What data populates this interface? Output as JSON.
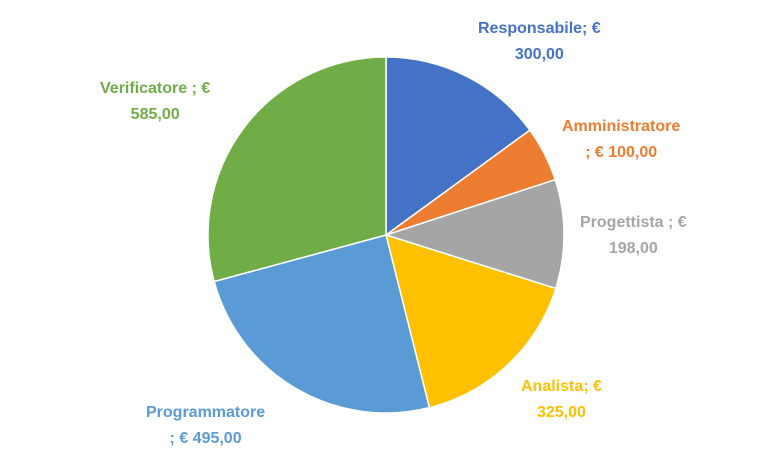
{
  "chart_data": {
    "type": "pie",
    "slices": [
      {
        "name": "Responsabile",
        "value": 300.0,
        "line1": "Responsabile; €",
        "line2": "300,00",
        "color": "#4472C4"
      },
      {
        "name": "Amministratore",
        "value": 100.0,
        "line1": "Amministratore",
        "line2": "; € 100,00",
        "color": "#ED7D31"
      },
      {
        "name": "Progettista",
        "value": 198.0,
        "line1": "Progettista ; €",
        "line2": "198,00",
        "color": "#A5A5A5"
      },
      {
        "name": "Analista",
        "value": 325.0,
        "line1": "Analista; €",
        "line2": "325,00",
        "color": "#FFC000"
      },
      {
        "name": "Programmatore",
        "value": 495.0,
        "line1": "Programmatore",
        "line2": "; € 495,00",
        "color": "#5B9BD5"
      },
      {
        "name": "Verificatore",
        "value": 585.0,
        "line1": "Verificatore ; €",
        "line2": "585,00",
        "color": "#70AD47"
      }
    ]
  }
}
